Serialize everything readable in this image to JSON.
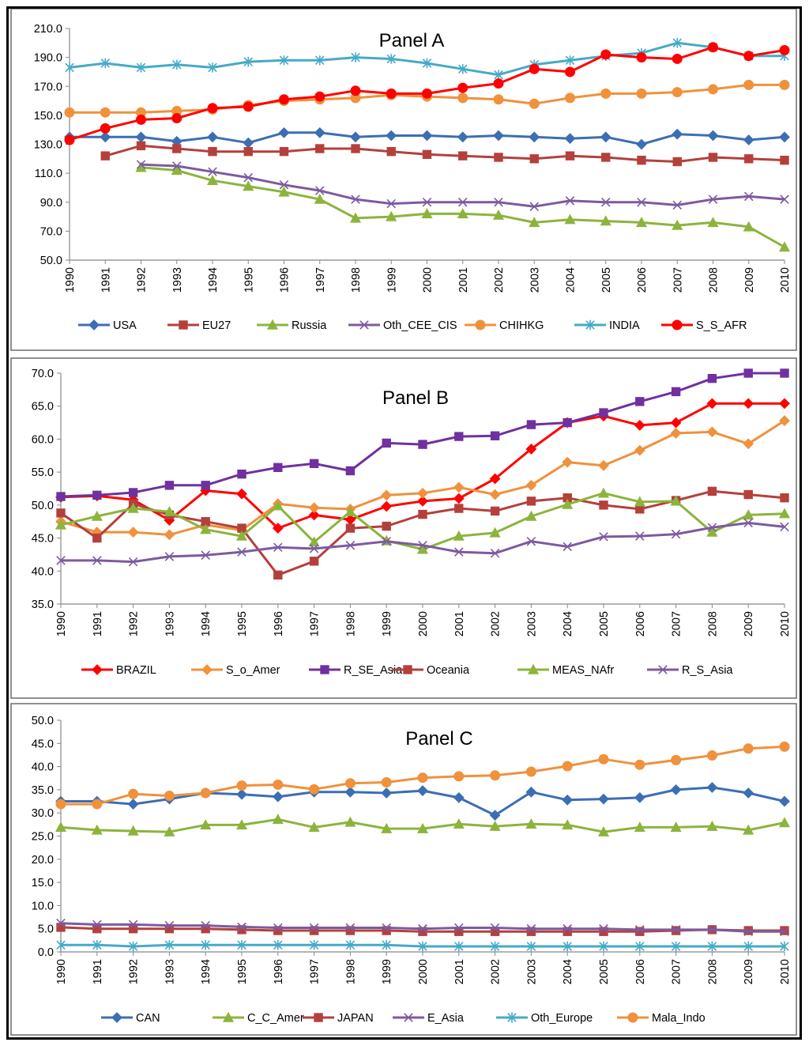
{
  "chart_data": [
    {
      "type": "line",
      "title": "Panel A",
      "x": [
        "1990",
        "1991",
        "1992",
        "1993",
        "1994",
        "1995",
        "1996",
        "1997",
        "1998",
        "1999",
        "2000",
        "2001",
        "2002",
        "2003",
        "2004",
        "2005",
        "2006",
        "2007",
        "2008",
        "2009",
        "2010"
      ],
      "ylim": [
        50,
        210
      ],
      "yticks": [
        "50.0",
        "70.0",
        "90.0",
        "110.0",
        "130.0",
        "150.0",
        "170.0",
        "190.0",
        "210.0"
      ],
      "series": [
        {
          "name": "USA",
          "color": "#3c6eb4",
          "marker": "diamond",
          "values": [
            135,
            135,
            135,
            132,
            135,
            131,
            138,
            138,
            135,
            136,
            136,
            135,
            136,
            135,
            134,
            135,
            130,
            137,
            136,
            133,
            135
          ]
        },
        {
          "name": "EU27",
          "color": "#b4403c",
          "marker": "square",
          "values": [
            null,
            122,
            129,
            127,
            125,
            125,
            125,
            127,
            127,
            125,
            123,
            122,
            121,
            120,
            122,
            121,
            119,
            118,
            121,
            120,
            119
          ]
        },
        {
          "name": "Russia",
          "color": "#8cb43c",
          "marker": "triangle",
          "values": [
            null,
            null,
            114,
            112,
            105,
            101,
            97,
            92,
            79,
            80,
            82,
            82,
            81,
            76,
            78,
            77,
            76,
            74,
            76,
            73,
            59
          ]
        },
        {
          "name": "Oth_CEE_CIS",
          "color": "#7d5aa0",
          "marker": "x",
          "values": [
            null,
            null,
            116,
            115,
            111,
            107,
            102,
            98,
            92,
            89,
            90,
            90,
            90,
            87,
            91,
            90,
            90,
            88,
            92,
            94,
            92
          ]
        },
        {
          "name": "CHIHKG",
          "color": "#f0913c",
          "marker": "circle",
          "values": [
            152,
            152,
            152,
            153,
            154,
            157,
            160,
            161,
            162,
            164,
            163,
            162,
            161,
            158,
            162,
            165,
            165,
            166,
            168,
            171,
            171
          ]
        },
        {
          "name": "INDIA",
          "color": "#46aac8",
          "marker": "star",
          "values": [
            183,
            186,
            183,
            185,
            183,
            187,
            188,
            188,
            190,
            189,
            186,
            182,
            178,
            185,
            188,
            191,
            193,
            200,
            197,
            191,
            191
          ]
        },
        {
          "name": "S_S_AFR",
          "color": "#ff0000",
          "marker": "circle",
          "values": [
            133,
            141,
            147,
            148,
            155,
            156,
            161,
            163,
            167,
            165,
            165,
            169,
            172,
            182,
            180,
            192,
            190,
            189,
            197,
            191,
            195
          ]
        }
      ]
    },
    {
      "type": "line",
      "title": "Panel B",
      "x": [
        "1990",
        "1991",
        "1992",
        "1993",
        "1994",
        "1995",
        "1996",
        "1997",
        "1998",
        "1999",
        "2000",
        "2001",
        "2002",
        "2003",
        "2004",
        "2005",
        "2006",
        "2007",
        "2008",
        "2009",
        "2010"
      ],
      "ylim": [
        35,
        70
      ],
      "yticks": [
        "35.0",
        "40.0",
        "45.0",
        "50.0",
        "55.0",
        "60.0",
        "65.0",
        "70.0"
      ],
      "series": [
        {
          "name": "BRAZIL",
          "color": "#ff0000",
          "marker": "diamond",
          "values": [
            51.2,
            51.4,
            50.8,
            47.7,
            52.2,
            51.7,
            46.5,
            48.5,
            47.8,
            49.8,
            50.6,
            51.0,
            54.0,
            58.5,
            62.5,
            63.5,
            62.1,
            62.5,
            65.4,
            65.4,
            65.4
          ]
        },
        {
          "name": "S_o_Amer",
          "color": "#f0913c",
          "marker": "diamond",
          "values": [
            47.5,
            45.9,
            45.9,
            45.5,
            47.0,
            46.2,
            50.2,
            49.6,
            49.4,
            51.5,
            51.8,
            52.7,
            51.6,
            53.0,
            56.5,
            56.0,
            58.3,
            60.9,
            61.1,
            59.3,
            62.8
          ]
        },
        {
          "name": "R_SE_Asia",
          "color": "#7030a0",
          "marker": "square",
          "values": [
            51.3,
            51.5,
            51.9,
            53.0,
            53.0,
            54.7,
            55.7,
            56.3,
            55.2,
            59.4,
            59.2,
            60.4,
            60.5,
            62.2,
            62.5,
            64.0,
            65.7,
            67.2,
            69.2,
            70.0,
            70.0
          ]
        },
        {
          "name": "Oceania",
          "color": "#b4403c",
          "marker": "square",
          "values": [
            48.8,
            45.0,
            50.2,
            48.5,
            47.5,
            46.5,
            39.4,
            41.5,
            46.5,
            46.8,
            48.6,
            49.5,
            49.1,
            50.6,
            51.1,
            50.0,
            49.4,
            50.7,
            52.1,
            51.6,
            51.1
          ]
        },
        {
          "name": "MEAS_NAfr",
          "color": "#8cb43c",
          "marker": "triangle",
          "values": [
            47.0,
            48.3,
            49.5,
            49.0,
            46.3,
            45.3,
            49.9,
            44.4,
            49.0,
            44.6,
            43.3,
            45.3,
            45.8,
            48.3,
            50.1,
            51.8,
            50.5,
            50.6,
            45.9,
            48.5,
            48.7
          ]
        },
        {
          "name": "R_S_Asia",
          "color": "#7d5aa0",
          "marker": "x",
          "values": [
            41.6,
            41.6,
            41.4,
            42.2,
            42.4,
            42.9,
            43.6,
            43.4,
            43.9,
            44.5,
            43.9,
            42.9,
            42.7,
            44.5,
            43.7,
            45.2,
            45.3,
            45.6,
            46.6,
            47.3,
            46.7
          ]
        }
      ]
    },
    {
      "type": "line",
      "title": "Panel C",
      "x": [
        "1990",
        "1991",
        "1992",
        "1993",
        "1994",
        "1995",
        "1996",
        "1997",
        "1998",
        "1999",
        "2000",
        "2001",
        "2002",
        "2003",
        "2004",
        "2005",
        "2006",
        "2007",
        "2008",
        "2009",
        "2010"
      ],
      "ylim": [
        0,
        50
      ],
      "yticks": [
        "0.0",
        "5.0",
        "10.0",
        "15.0",
        "20.0",
        "25.0",
        "30.0",
        "35.0",
        "40.0",
        "45.0",
        "50.0"
      ],
      "series": [
        {
          "name": "CAN",
          "color": "#3c6eb4",
          "marker": "diamond",
          "values": [
            32.5,
            32.5,
            31.9,
            33.0,
            34.3,
            34.0,
            33.5,
            34.5,
            34.5,
            34.3,
            34.8,
            33.3,
            29.5,
            34.5,
            32.8,
            33.0,
            33.3,
            35.0,
            35.5,
            34.3,
            32.5
          ]
        },
        {
          "name": "C_C_Amer",
          "color": "#8cb43c",
          "marker": "triangle",
          "values": [
            26.9,
            26.3,
            26.1,
            25.9,
            27.4,
            27.4,
            28.6,
            26.9,
            28.0,
            26.6,
            26.6,
            27.6,
            27.1,
            27.6,
            27.4,
            25.9,
            26.9,
            26.9,
            27.1,
            26.3,
            27.9
          ]
        },
        {
          "name": "JAPAN",
          "color": "#b4403c",
          "marker": "square",
          "values": [
            5.3,
            5.0,
            5.0,
            5.0,
            5.0,
            4.8,
            4.6,
            4.6,
            4.6,
            4.6,
            4.4,
            4.4,
            4.4,
            4.4,
            4.4,
            4.4,
            4.4,
            4.6,
            4.8,
            4.6,
            4.6
          ]
        },
        {
          "name": "E_Asia",
          "color": "#7d5aa0",
          "marker": "x",
          "values": [
            6.2,
            5.9,
            5.9,
            5.7,
            5.7,
            5.4,
            5.2,
            5.2,
            5.2,
            5.2,
            5.0,
            5.2,
            5.2,
            5.0,
            5.0,
            5.0,
            4.8,
            4.8,
            4.8,
            4.4,
            4.4
          ]
        },
        {
          "name": "Oth_Europe",
          "color": "#46aac8",
          "marker": "star",
          "values": [
            1.5,
            1.5,
            1.2,
            1.5,
            1.5,
            1.5,
            1.5,
            1.5,
            1.5,
            1.5,
            1.2,
            1.2,
            1.2,
            1.2,
            1.2,
            1.2,
            1.2,
            1.2,
            1.2,
            1.2,
            1.2
          ]
        },
        {
          "name": "Mala_Indo",
          "color": "#f0913c",
          "marker": "circle",
          "values": [
            31.9,
            31.9,
            34.1,
            33.7,
            34.3,
            35.9,
            36.1,
            35.1,
            36.4,
            36.6,
            37.6,
            37.9,
            38.1,
            38.9,
            40.1,
            41.6,
            40.4,
            41.4,
            42.4,
            43.9,
            44.3
          ]
        }
      ]
    }
  ]
}
